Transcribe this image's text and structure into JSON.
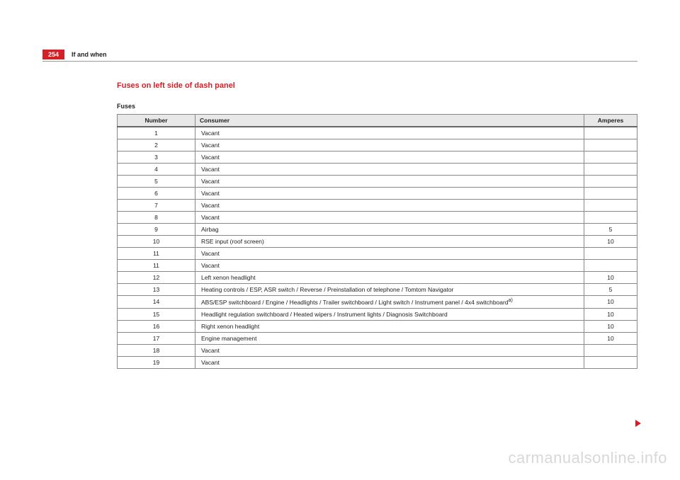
{
  "page": {
    "number": "254",
    "chapter": "If and when"
  },
  "section": {
    "title": "Fuses on left side of dash panel",
    "subheading": "Fuses"
  },
  "table": {
    "headers": {
      "number": "Number",
      "consumer": "Consumer",
      "amperes": "Amperes"
    },
    "rows": [
      {
        "num": "1",
        "cons": "Vacant",
        "amp": ""
      },
      {
        "num": "2",
        "cons": "Vacant",
        "amp": ""
      },
      {
        "num": "3",
        "cons": "Vacant",
        "amp": ""
      },
      {
        "num": "4",
        "cons": "Vacant",
        "amp": ""
      },
      {
        "num": "5",
        "cons": "Vacant",
        "amp": ""
      },
      {
        "num": "6",
        "cons": "Vacant",
        "amp": ""
      },
      {
        "num": "7",
        "cons": "Vacant",
        "amp": ""
      },
      {
        "num": "8",
        "cons": "Vacant",
        "amp": ""
      },
      {
        "num": "9",
        "cons": "Airbag",
        "amp": "5"
      },
      {
        "num": "10",
        "cons": "RSE input (roof screen)",
        "amp": "10"
      },
      {
        "num": "11",
        "cons": "Vacant",
        "amp": ""
      },
      {
        "num": "11",
        "cons": "Vacant",
        "amp": ""
      },
      {
        "num": "12",
        "cons": "Left xenon headlight",
        "amp": "10"
      },
      {
        "num": "13",
        "cons": "Heating controls / ESP, ASR switch / Reverse / Preinstallation of telephone / Tomtom Navigator",
        "amp": "5"
      },
      {
        "num": "14",
        "cons": "ABS/ESP switchboard / Engine / Headlights / Trailer switchboard / Light switch / Instrument panel / 4x4 switchboard",
        "sup": "a)",
        "amp": "10"
      },
      {
        "num": "15",
        "cons": "Headlight regulation switchboard / Heated wipers / Instrument lights / Diagnosis Switchboard",
        "amp": "10"
      },
      {
        "num": "16",
        "cons": "Right xenon headlight",
        "amp": "10"
      },
      {
        "num": "17",
        "cons": "Engine management",
        "amp": "10"
      },
      {
        "num": "18",
        "cons": "Vacant",
        "amp": ""
      },
      {
        "num": "19",
        "cons": "Vacant",
        "amp": ""
      }
    ]
  },
  "watermark": "carmanualsonline.info"
}
